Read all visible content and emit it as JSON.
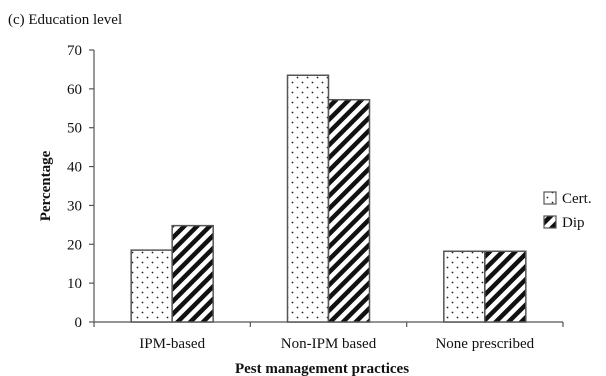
{
  "chart_data": {
    "type": "bar",
    "title": "(c)  Education level",
    "xlabel": "Pest management practices",
    "ylabel": "Percentage",
    "categories": [
      "IPM-based",
      "Non-IPM based",
      "None prescribed"
    ],
    "series": [
      {
        "name": "Cert.",
        "values": [
          18.5,
          63.5,
          18.2
        ],
        "pattern": "dots"
      },
      {
        "name": "Dip",
        "values": [
          24.8,
          57.2,
          18.2
        ],
        "pattern": "diagonal-stripes"
      }
    ],
    "ylim": [
      0,
      70
    ],
    "yticks": [
      "0",
      "10",
      "20",
      "30",
      "40",
      "50",
      "60",
      "70"
    ],
    "grid": false,
    "legend_position": "right",
    "colors": {
      "axis": "#555555",
      "bar_outline": "#555555",
      "pattern": "#111111",
      "background": "#ffffff"
    }
  }
}
